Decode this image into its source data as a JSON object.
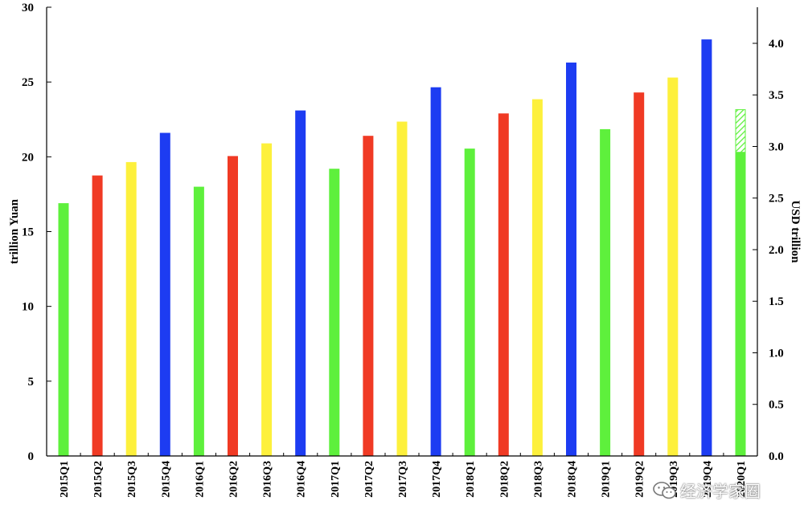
{
  "chart_data": {
    "type": "bar",
    "categories": [
      "2015Q1",
      "2015Q2",
      "2015Q3",
      "2015Q4",
      "2016Q1",
      "2016Q2",
      "2016Q3",
      "2016Q4",
      "2017Q1",
      "2017Q2",
      "2017Q3",
      "2017Q4",
      "2018Q1",
      "2018Q2",
      "2018Q3",
      "2018Q4",
      "2019Q1",
      "2019Q2",
      "2019Q3",
      "2019Q4",
      "2020Q1"
    ],
    "values": [
      16.9,
      18.75,
      19.65,
      21.6,
      18.0,
      20.05,
      20.9,
      23.1,
      19.2,
      21.4,
      22.35,
      24.65,
      20.55,
      22.9,
      23.85,
      26.3,
      21.85,
      24.3,
      25.3,
      27.85,
      23.15
    ],
    "bar_colors": [
      "#5ef03c",
      "#f03a24",
      "#fdf03c",
      "#1d3cf2",
      "#5ef03c",
      "#f03a24",
      "#fdf03c",
      "#1d3cf2",
      "#5ef03c",
      "#f03a24",
      "#fdf03c",
      "#1d3cf2",
      "#5ef03c",
      "#f03a24",
      "#fdf03c",
      "#1d3cf2",
      "#5ef03c",
      "#f03a24",
      "#fdf03c",
      "#1d3cf2",
      "#5ef03c"
    ],
    "hatched_segment": {
      "category": "2020Q1",
      "from": 20.3,
      "to": 23.15
    },
    "ylabel": "trillion Yuan",
    "ylim": [
      0,
      30
    ],
    "yticks": [
      0,
      5,
      10,
      15,
      20,
      25,
      30
    ],
    "y2label": "USD trillion",
    "y2lim": [
      0,
      4.35
    ],
    "y2ticks": [
      "0.0",
      "0.5",
      "1.0",
      "1.5",
      "2.0",
      "2.5",
      "3.0",
      "3.5",
      "4.0"
    ],
    "grid": false,
    "legend": "none"
  },
  "watermark": {
    "text": "经济学家圈",
    "icon": "wechat-icon"
  }
}
